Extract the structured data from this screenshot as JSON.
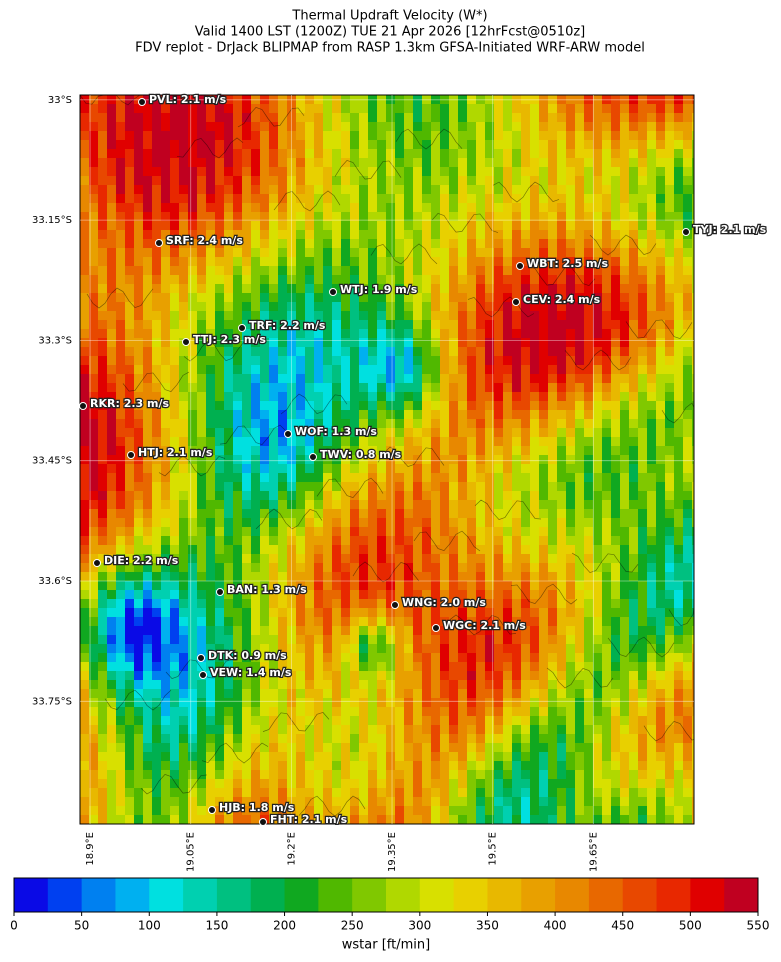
{
  "title_lines": [
    "Thermal Updraft Velocity (W*)",
    "Valid 1400 LST (1200Z) TUE 21 Apr 2026 [12hrFcst@0510z]",
    "FDV replot - DrJack BLIPMAP from RASP 1.3km GFSA-Initiated WRF-ARW model"
  ],
  "map": {
    "xlim": [
      18.885,
      19.8
    ],
    "ylim": [
      -33.903,
      -32.994
    ],
    "xticks": [
      {
        "value": 18.9,
        "label": "18.9°E"
      },
      {
        "value": 19.05,
        "label": "19.05°E"
      },
      {
        "value": 19.2,
        "label": "19.2°E"
      },
      {
        "value": 19.35,
        "label": "19.35°E"
      },
      {
        "value": 19.5,
        "label": "19.5°E"
      },
      {
        "value": 19.65,
        "label": "19.65°E"
      }
    ],
    "yticks": [
      {
        "value": -33,
        "label": "33°S"
      },
      {
        "value": -33.15,
        "label": "33.15°S"
      },
      {
        "value": -33.3,
        "label": "33.3°S"
      },
      {
        "value": -33.45,
        "label": "33.45°S"
      },
      {
        "value": -33.6,
        "label": "33.6°S"
      },
      {
        "value": -33.75,
        "label": "33.75°S"
      }
    ],
    "grid": true,
    "stations": [
      "PVL: 2.1 m/s",
      "SRF: 2.4 m/s",
      "TYJ: 2.1 m/s",
      "WBT: 2.5 m/s",
      "CEV: 2.4 m/s",
      "WTJ: 1.9 m/s",
      "TRF: 2.2 m/s",
      "TTJ: 2.3 m/s",
      "RKR: 2.3 m/s",
      "WOF: 1.3 m/s",
      "TWV: 0.8 m/s",
      "HTJ: 2.1 m/s",
      "DIE: 2.2 m/s",
      "BAN: 1.3 m/s",
      "WNG: 2.0 m/s",
      "WGC: 2.1 m/s",
      "DTK: 0.9 m/s",
      "VEW: 1.4 m/s",
      "HJB: 1.8 m/s",
      "FHT: 2.1 m/s"
    ]
  },
  "colorbar": {
    "lim": [
      0,
      550
    ],
    "ticks": [
      0,
      50,
      100,
      150,
      200,
      250,
      300,
      350,
      400,
      450,
      500,
      550
    ],
    "label": "wstar [ft/min]",
    "colors": [
      "#0a0ae6",
      "#0040f0",
      "#0080f0",
      "#00b0f0",
      "#00e0e0",
      "#00d0b0",
      "#00c080",
      "#00b050",
      "#10a820",
      "#50b800",
      "#80c800",
      "#b0d800",
      "#d8e000",
      "#e8d000",
      "#e8b800",
      "#e8a000",
      "#e88800",
      "#e86800",
      "#e84800",
      "#e82800",
      "#e00000",
      "#c00020"
    ]
  }
}
